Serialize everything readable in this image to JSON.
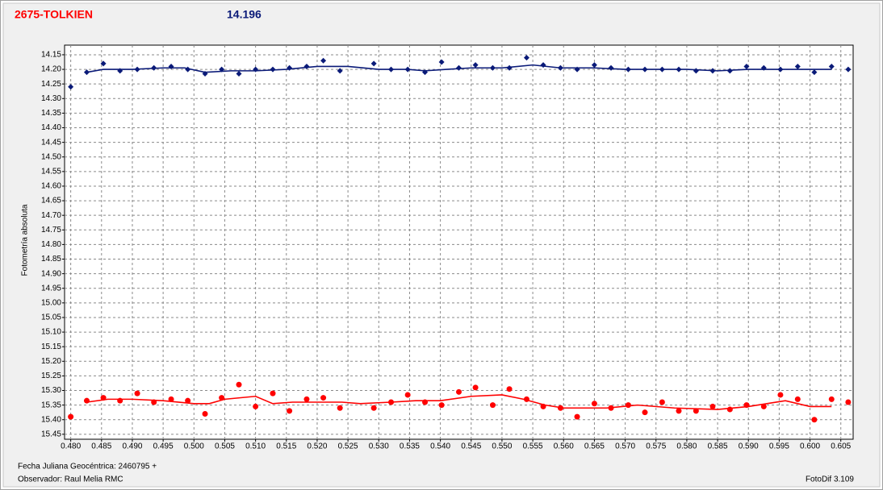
{
  "chart_data": {
    "type": "scatter",
    "title": "2675-TOLKIEN",
    "subtitle": "14.196",
    "y_label": "Fotometría absoluta",
    "x_label": "Fecha Juliana Geocéntrica: 2460795 +",
    "observer": "Observador: Raul Melia RMC",
    "software": "FotoDif 3.109",
    "grid": true,
    "xlim": [
      0.479,
      0.607
    ],
    "ylim": [
      15.467,
      14.117
    ],
    "xticks": [
      {
        "value": 0.48,
        "label": "0.480"
      },
      0.485,
      {
        "value": 0.49,
        "label": "0.490"
      },
      0.495,
      {
        "value": 0.5,
        "label": "0.500"
      },
      0.505,
      {
        "value": 0.51,
        "label": "0.510"
      },
      0.515,
      {
        "value": 0.52,
        "label": "0.520"
      },
      0.525,
      {
        "value": 0.53,
        "label": "0.530"
      },
      0.535,
      {
        "value": 0.54,
        "label": "0.540"
      },
      0.545,
      {
        "value": 0.55,
        "label": "0.550"
      },
      0.555,
      {
        "value": 0.56,
        "label": "0.560"
      },
      0.565,
      {
        "value": 0.57,
        "label": "0.570"
      },
      0.575,
      {
        "value": 0.58,
        "label": "0.580"
      },
      0.585,
      {
        "value": 0.59,
        "label": "0.590"
      },
      0.595,
      {
        "value": 0.6,
        "label": "0.600"
      },
      0.605
    ],
    "yticks": [
      14.15,
      {
        "value": 14.2,
        "label": "14.20"
      },
      14.25,
      {
        "value": 14.3,
        "label": "14.30"
      },
      14.35,
      {
        "value": 14.4,
        "label": "14.40"
      },
      14.45,
      {
        "value": 14.5,
        "label": "14.50"
      },
      14.55,
      {
        "value": 14.6,
        "label": "14.60"
      },
      14.65,
      {
        "value": 14.7,
        "label": "14.70"
      },
      14.75,
      {
        "value": 14.8,
        "label": "14.80"
      },
      14.85,
      {
        "value": 14.9,
        "label": "14.90"
      },
      14.95,
      {
        "value": 15,
        "label": "15.00"
      },
      15.05,
      {
        "value": 15.1,
        "label": "15.10"
      },
      15.15,
      {
        "value": 15.2,
        "label": "15.20"
      },
      15.25,
      {
        "value": 15.3,
        "label": "15.30"
      },
      15.35,
      {
        "value": 15.4,
        "label": "15.40"
      },
      15.45
    ],
    "x": [
      0.48,
      0.4826,
      0.4853,
      0.488,
      0.4908,
      0.4935,
      0.4963,
      0.499,
      0.5018,
      0.5045,
      0.5073,
      0.51,
      0.5128,
      0.5155,
      0.5183,
      0.521,
      0.5237,
      0.5292,
      0.532,
      0.5347,
      0.5375,
      0.5402,
      0.543,
      0.5457,
      0.5485,
      0.5512,
      0.554,
      0.5567,
      0.5595,
      0.5622,
      0.565,
      0.5677,
      0.5705,
      0.5732,
      0.576,
      0.5787,
      0.5815,
      0.5842,
      0.587,
      0.5897,
      0.5925,
      0.5952,
      0.598,
      0.6007,
      0.6035,
      0.6062
    ],
    "series": [
      {
        "color": "#0a1a78",
        "marker": "diamond",
        "values": [
          14.26,
          14.21,
          14.18,
          14.205,
          14.2,
          14.195,
          14.19,
          14.2,
          14.215,
          14.2,
          14.215,
          14.2,
          14.2,
          14.195,
          14.19,
          14.17,
          14.205,
          14.18,
          14.2,
          14.2,
          14.21,
          14.175,
          14.195,
          14.185,
          14.195,
          14.195,
          14.16,
          14.185,
          14.195,
          14.2,
          14.185,
          14.195,
          14.2,
          14.2,
          14.2,
          14.2,
          14.205,
          14.205,
          14.205,
          14.19,
          14.195,
          14.2,
          14.19,
          14.21,
          14.19,
          14.2
        ]
      },
      {
        "color": "#0a1a78",
        "line": true,
        "x": [
          0.4826,
          0.4853,
          0.49,
          0.495,
          0.4985,
          0.5018,
          0.506,
          0.51,
          0.515,
          0.52,
          0.525,
          0.53,
          0.5347,
          0.5375,
          0.541,
          0.545,
          0.55,
          0.555,
          0.5595,
          0.565,
          0.57,
          0.575,
          0.58,
          0.585,
          0.59,
          0.595,
          0.6,
          0.6035
        ],
        "values": [
          14.21,
          14.2,
          14.2,
          14.195,
          14.195,
          14.21,
          14.205,
          14.205,
          14.2,
          14.19,
          14.19,
          14.2,
          14.2,
          14.205,
          14.2,
          14.195,
          14.195,
          14.185,
          14.195,
          14.195,
          14.2,
          14.2,
          14.2,
          14.205,
          14.2,
          14.2,
          14.2,
          14.2
        ]
      },
      {
        "color": "#ff0000",
        "marker": "circle",
        "values": [
          15.39,
          15.335,
          15.325,
          15.335,
          15.31,
          15.34,
          15.33,
          15.335,
          15.38,
          15.325,
          15.28,
          15.355,
          15.31,
          15.37,
          15.33,
          15.325,
          15.36,
          15.36,
          15.34,
          15.315,
          15.34,
          15.35,
          15.305,
          15.29,
          15.35,
          15.295,
          15.33,
          15.355,
          15.36,
          15.39,
          15.345,
          15.36,
          15.35,
          15.375,
          15.34,
          15.37,
          15.37,
          15.355,
          15.365,
          15.35,
          15.355,
          15.315,
          15.33,
          15.4,
          15.33,
          15.34
        ]
      },
      {
        "color": "#ff0000",
        "line": true,
        "x": [
          0.4826,
          0.486,
          0.49,
          0.495,
          0.5,
          0.5025,
          0.505,
          0.51,
          0.5128,
          0.516,
          0.52,
          0.524,
          0.527,
          0.532,
          0.536,
          0.54,
          0.545,
          0.55,
          0.5535,
          0.557,
          0.56,
          0.564,
          0.567,
          0.572,
          0.578,
          0.585,
          0.59,
          0.596,
          0.6,
          0.6035
        ],
        "values": [
          15.34,
          15.33,
          15.33,
          15.335,
          15.345,
          15.345,
          15.33,
          15.32,
          15.345,
          15.34,
          15.34,
          15.34,
          15.345,
          15.34,
          15.335,
          15.335,
          15.32,
          15.315,
          15.33,
          15.35,
          15.36,
          15.36,
          15.36,
          15.35,
          15.36,
          15.365,
          15.355,
          15.335,
          15.355,
          15.355
        ]
      }
    ]
  }
}
